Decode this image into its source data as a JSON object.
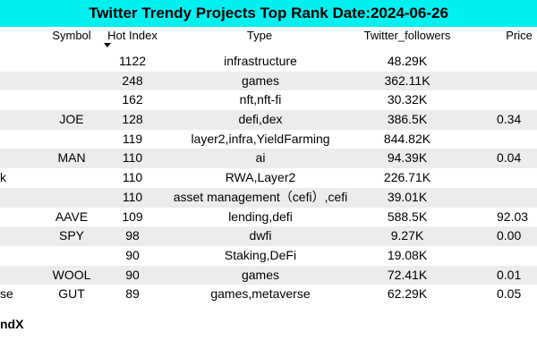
{
  "title": "Twitter Trendy Projects Top Rank Date:2024-06-26",
  "columns": {
    "symbol": "Symbol",
    "hot_index": "Hot Index",
    "type": "Type",
    "followers": "Twitter_followers",
    "price": "Price"
  },
  "rows": [
    {
      "name": "",
      "symbol": "",
      "hot": "1122",
      "type": "infrastructure",
      "followers": "48.29K",
      "price": ""
    },
    {
      "name": "",
      "symbol": "",
      "hot": "248",
      "type": "games",
      "followers": "362.11K",
      "price": ""
    },
    {
      "name": "",
      "symbol": "",
      "hot": "162",
      "type": "nft,nft-fi",
      "followers": "30.32K",
      "price": ""
    },
    {
      "name": "",
      "symbol": "JOE",
      "hot": "128",
      "type": "defi,dex",
      "followers": "386.5K",
      "price": "0.34"
    },
    {
      "name": "",
      "symbol": "",
      "hot": "119",
      "type": "layer2,infra,YieldFarming",
      "followers": "844.82K",
      "price": ""
    },
    {
      "name": "",
      "symbol": "MAN",
      "hot": "110",
      "type": "ai",
      "followers": "94.39K",
      "price": "0.04"
    },
    {
      "name": "k",
      "symbol": "",
      "hot": "110",
      "type": "RWA,Layer2",
      "followers": "226.71K",
      "price": ""
    },
    {
      "name": "",
      "symbol": "",
      "hot": "110",
      "type": "asset management（cefi）,cefi",
      "followers": "39.01K",
      "price": ""
    },
    {
      "name": "",
      "symbol": "AAVE",
      "hot": "109",
      "type": "lending,defi",
      "followers": "588.5K",
      "price": "92.03"
    },
    {
      "name": "",
      "symbol": "SPY",
      "hot": "98",
      "type": "dwfi",
      "followers": "9.27K",
      "price": "0.00"
    },
    {
      "name": "",
      "symbol": "",
      "hot": "90",
      "type": "Staking,DeFi",
      "followers": "19.08K",
      "price": ""
    },
    {
      "name": "",
      "symbol": "WOOL",
      "hot": "90",
      "type": "games",
      "followers": "72.41K",
      "price": "0.01"
    },
    {
      "name": "se",
      "symbol": "GUT",
      "hot": "89",
      "type": "games,metaverse",
      "followers": "62.29K",
      "price": "0.05"
    }
  ],
  "footer": "ndX"
}
